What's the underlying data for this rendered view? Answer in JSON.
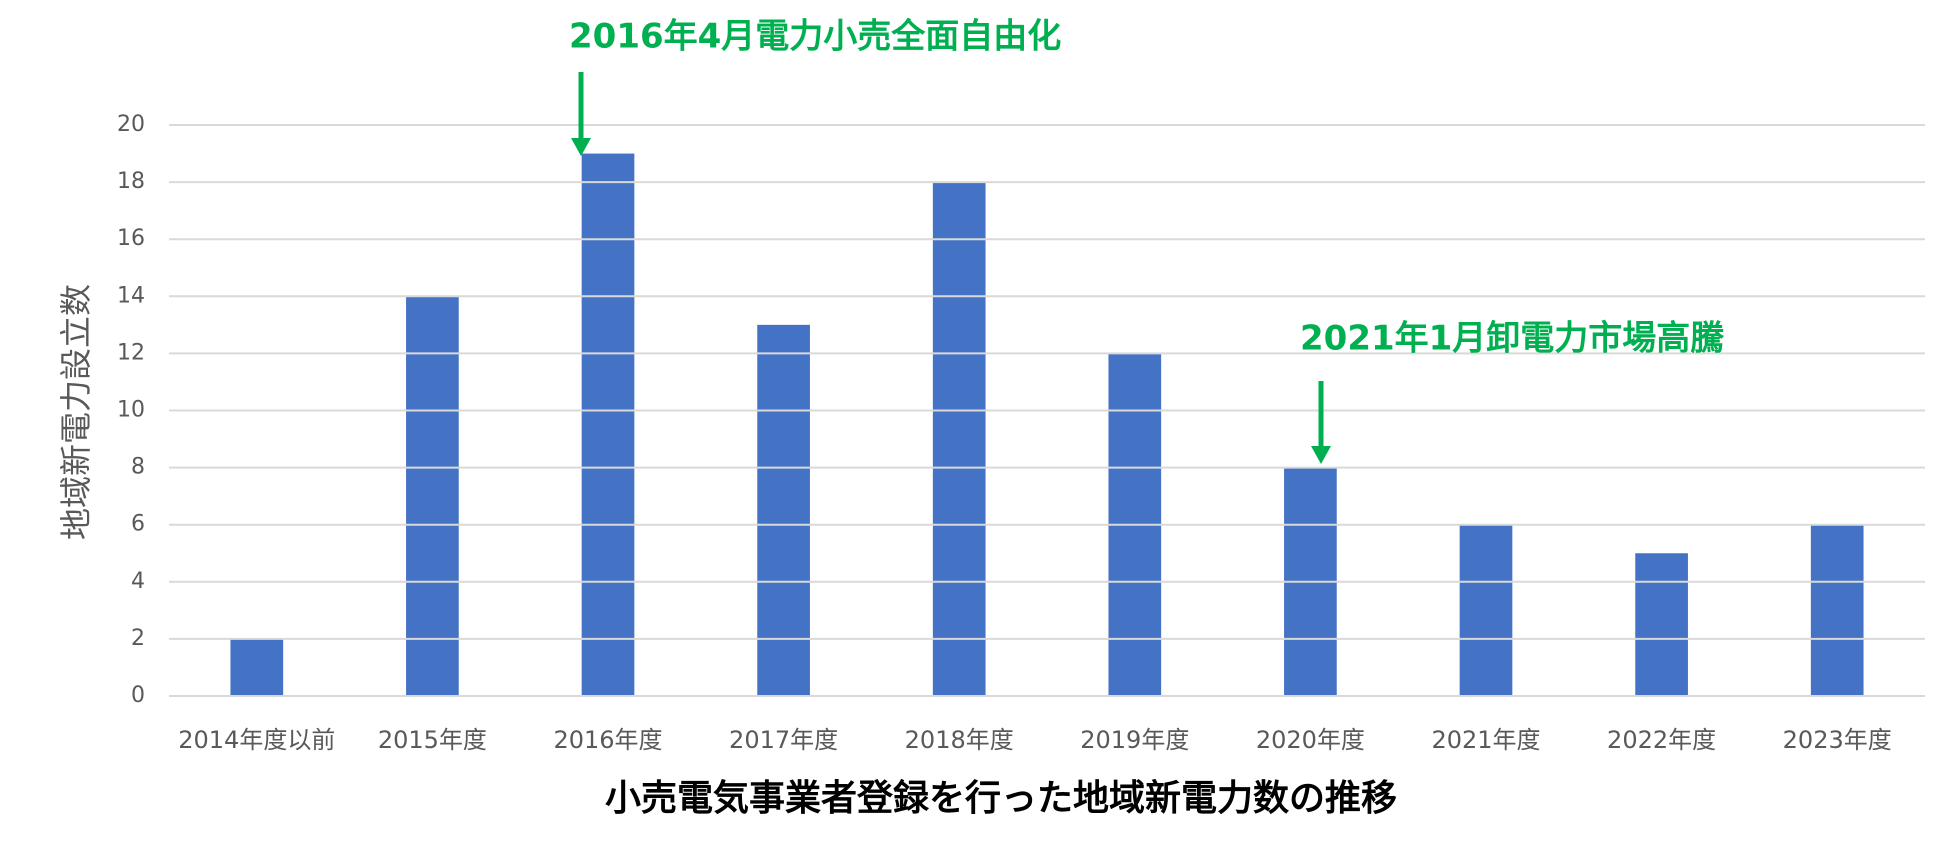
{
  "chart_data": {
    "type": "bar",
    "title": "小売電気事業者登録を行った地域新電力数の推移",
    "y_label": "地域新電力設立数",
    "annotations": [
      "2016年4月電力小売全面自由化",
      "2021年1月卸電力市場高騰"
    ],
    "categories": [
      "2014年度以前",
      "2015年度",
      "2016年度",
      "2017年度",
      "2018年度",
      "2019年度",
      "2020年度",
      "2021年度",
      "2022年度",
      "2023年度"
    ],
    "values": [
      2,
      14,
      19,
      13,
      18,
      12,
      8,
      6,
      5,
      6
    ],
    "color": "#4472c4",
    "annotation_color": "#00b050",
    "ylim": [
      0,
      20
    ],
    "yticks": [
      0,
      2,
      4,
      6,
      8,
      10,
      12,
      14,
      16,
      18,
      20
    ],
    "grid": true
  }
}
